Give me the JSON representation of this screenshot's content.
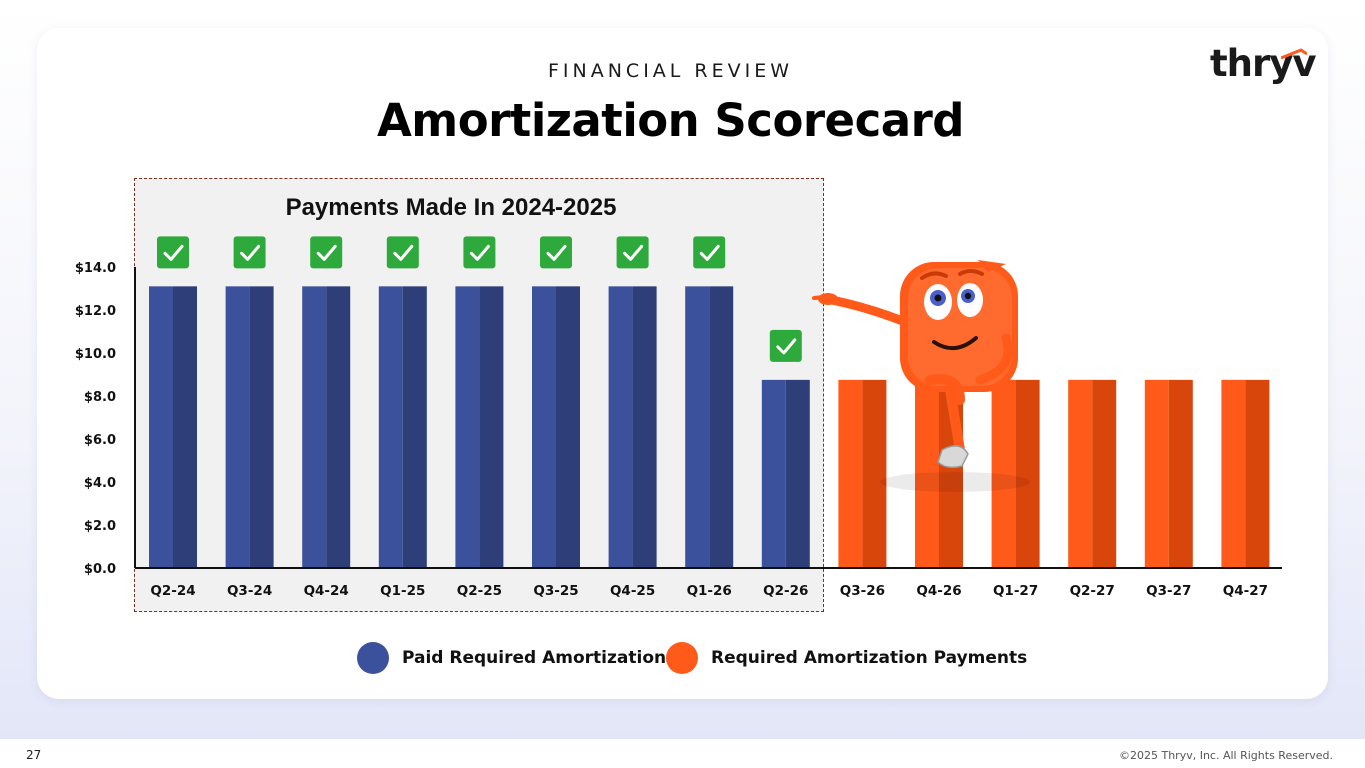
{
  "header": {
    "eyebrow": "FINANCIAL REVIEW",
    "title": "Amortization Scorecard",
    "logo_text": "thryv"
  },
  "highlight": {
    "label": "Payments Made In 2024-2025"
  },
  "chart_data": {
    "type": "bar",
    "title": "Amortization Scorecard",
    "ylabel": "",
    "xlabel": "",
    "ylim": [
      0,
      14
    ],
    "y_ticks": [
      0,
      2,
      4,
      6,
      8,
      10,
      12,
      14
    ],
    "y_tick_labels": [
      "$0.0",
      "$2.0",
      "$4.0",
      "$6.0",
      "$8.0",
      "$10.0",
      "$12.0",
      "$14.0"
    ],
    "categories": [
      "Q2-24",
      "Q3-24",
      "Q4-24",
      "Q1-25",
      "Q2-25",
      "Q3-25",
      "Q4-25",
      "Q1-26",
      "Q2-26",
      "Q3-26",
      "Q4-26",
      "Q1-27",
      "Q2-27",
      "Q3-27",
      "Q4-27"
    ],
    "values": [
      13.1,
      13.1,
      13.1,
      13.1,
      13.1,
      13.1,
      13.1,
      13.1,
      8.75,
      8.75,
      8.75,
      8.75,
      8.75,
      8.75,
      8.75
    ],
    "paid": [
      true,
      true,
      true,
      true,
      true,
      true,
      true,
      true,
      true,
      false,
      false,
      false,
      false,
      false,
      false
    ],
    "series": [
      {
        "name": "Paid Required Amortization",
        "color": "#3c519b",
        "shade": "#2e3e78"
      },
      {
        "name": "Required Amortization Payments",
        "color": "#ff5a1a",
        "shade": "#d8460c"
      }
    ],
    "check_color": "#2eaa3c",
    "legend_position": "bottom-center"
  },
  "legend": [
    {
      "label": "Paid Required Amortization",
      "color": "#3c519b"
    },
    {
      "label": "Required Amortization Payments",
      "color": "#ff5a1a"
    }
  ],
  "footer": {
    "page_number": "27",
    "copyright": "©2025 Thryv, Inc. All Rights Reserved."
  }
}
